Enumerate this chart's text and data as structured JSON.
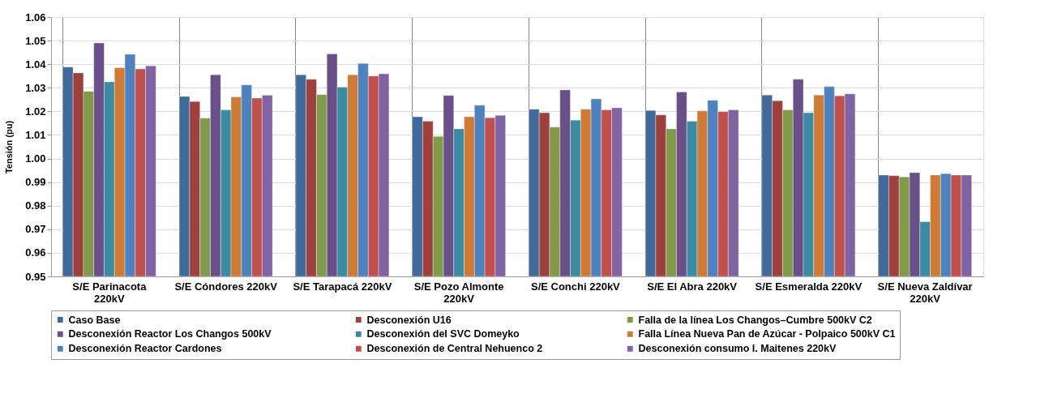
{
  "chart_data": {
    "type": "bar",
    "ylabel": "Tensión (pu)",
    "categories": [
      "S/E Parinacota 220kV",
      "S/E Cóndores 220kV",
      "S/E Tarapacá 220kV",
      "S/E Pozo Almonte 220kV",
      "S/E Conchi 220kV",
      "S/E El Abra 220kV",
      "S/E Esmeralda 220kV",
      "S/E Nueva Zaldívar 220kV"
    ],
    "ylim": [
      0.95,
      1.06
    ],
    "yticks": [
      {
        "value": 0.95,
        "label": "0.95"
      },
      {
        "value": 0.96,
        "label": "0.96"
      },
      {
        "value": 0.97,
        "label": "0.97"
      },
      {
        "value": 0.98,
        "label": "0.98"
      },
      {
        "value": 0.99,
        "label": "0.99"
      },
      {
        "value": 1.0,
        "label": "1.00"
      },
      {
        "value": 1.01,
        "label": "1.01"
      },
      {
        "value": 1.02,
        "label": "1.02"
      },
      {
        "value": 1.03,
        "label": "1.03"
      },
      {
        "value": 1.04,
        "label": "1.04"
      },
      {
        "value": 1.05,
        "label": "1.05"
      },
      {
        "value": 1.06,
        "label": "1.06"
      }
    ],
    "grid": true,
    "legend": "bottom",
    "series": [
      {
        "name": "Caso Base",
        "color": "#416a9b",
        "values": [
          1.0388,
          1.0263,
          1.0355,
          1.0177,
          1.0209,
          1.0204,
          1.0269,
          0.993
        ]
      },
      {
        "name": "Desconexión U16",
        "color": "#9e403e",
        "values": [
          1.0363,
          1.0242,
          1.0336,
          1.0158,
          1.0194,
          1.0185,
          1.0245,
          0.9927
        ]
      },
      {
        "name": "Falla de la línea Los Changos–Cumbre  500kV C2",
        "color": "#809a49",
        "values": [
          1.0285,
          1.0171,
          1.0271,
          1.0094,
          1.0133,
          1.0126,
          1.0206,
          0.9922
        ]
      },
      {
        "name": "Desconexión Reactor Los Changos 500kV",
        "color": "#6a5088",
        "values": [
          1.049,
          1.0355,
          1.0444,
          1.0267,
          1.0291,
          1.0282,
          1.0336,
          0.994
        ]
      },
      {
        "name": "Desconexión del SVC Domeyko",
        "color": "#3b8ca3",
        "values": [
          1.0325,
          1.0206,
          1.0303,
          1.0126,
          1.0163,
          1.0158,
          1.0194,
          0.9732
        ]
      },
      {
        "name": "Falla Línea Nueva Pan de Azúcar - Polpaico 500kV C1",
        "color": "#cd7b37",
        "values": [
          1.0385,
          1.0261,
          1.0355,
          1.0177,
          1.0209,
          1.0202,
          1.0269,
          0.993
        ]
      },
      {
        "name": "Desconexión Reactor Cardones",
        "color": "#4f81bd",
        "values": [
          1.0442,
          1.0312,
          1.0403,
          1.0226,
          1.0253,
          1.0247,
          1.0305,
          0.9936
        ]
      },
      {
        "name": "Desconexión de Central Nehuenco 2",
        "color": "#c0504d",
        "values": [
          1.038,
          1.0256,
          1.035,
          1.0173,
          1.0206,
          1.0199,
          1.0266,
          0.993
        ]
      },
      {
        "name": "Desconexión consumo I. Maitenes 220kV",
        "color": "#8064a2",
        "values": [
          1.0393,
          1.0268,
          1.0359,
          1.0183,
          1.0215,
          1.0206,
          1.0274,
          0.993
        ]
      }
    ]
  }
}
